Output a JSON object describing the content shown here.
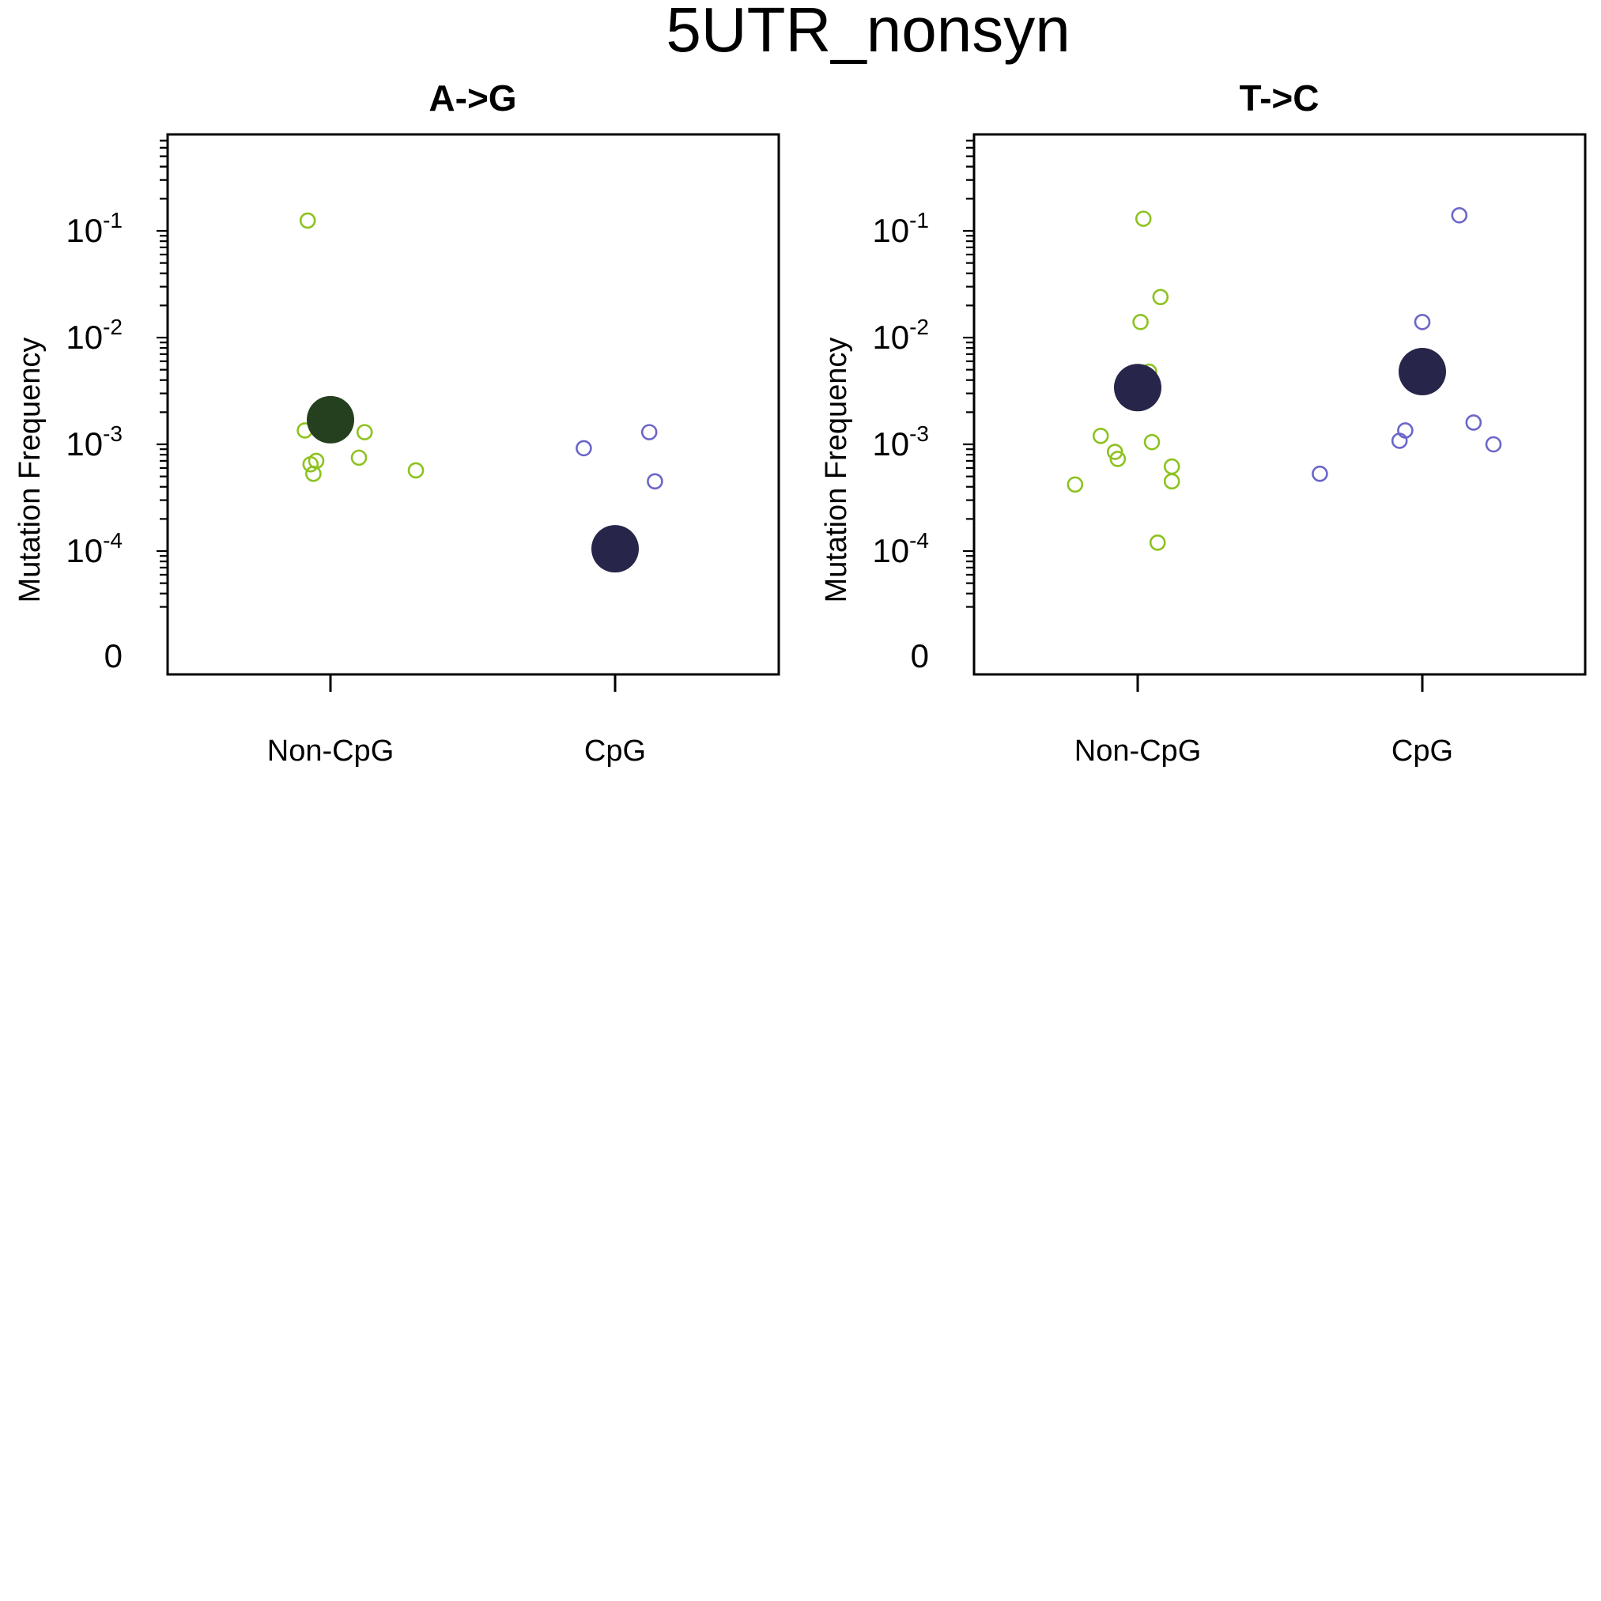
{
  "figure": {
    "title": "5UTR_nonsyn"
  },
  "colors": {
    "noncpg_points": "#8DC21F",
    "cpg_points": "#6B66C8",
    "noncpg_mean_agg": "#25401F",
    "mean_dark": "#27264A",
    "axis": "#000000"
  },
  "chart_data": [
    {
      "type": "scatter",
      "title": "A->G",
      "ylabel": "Mutation Frequency",
      "y_scale": "log10 with zero",
      "ylim": [
        0,
        0.8
      ],
      "y_ticks": [
        {
          "value": 0,
          "label": "0"
        },
        {
          "value": 0.0001,
          "label": "10^-4"
        },
        {
          "value": 0.001,
          "label": "10^-3"
        },
        {
          "value": 0.01,
          "label": "10^-2"
        },
        {
          "value": 0.1,
          "label": "10^-1"
        }
      ],
      "categories": [
        "Non-CpG",
        "CpG"
      ],
      "series": [
        {
          "category": "Non-CpG",
          "points": [
            {
              "x": 0.92,
              "y": 0.125
            },
            {
              "x": 0.91,
              "y": 0.00135
            },
            {
              "x": 0.93,
              "y": 0.00065
            },
            {
              "x": 0.95,
              "y": 0.0007
            },
            {
              "x": 0.94,
              "y": 0.00053
            },
            {
              "x": 1.12,
              "y": 0.0013
            },
            {
              "x": 1.1,
              "y": 0.00075
            },
            {
              "x": 1.3,
              "y": 0.00057
            }
          ],
          "mean": {
            "x": 1.0,
            "y": 0.0017
          }
        },
        {
          "category": "CpG",
          "points": [
            {
              "x": 1.89,
              "y": 0.00092
            },
            {
              "x": 2.12,
              "y": 0.0013
            },
            {
              "x": 2.14,
              "y": 0.00045
            }
          ],
          "mean": {
            "x": 2.0,
            "y": 0.000105
          }
        }
      ]
    },
    {
      "type": "scatter",
      "title": "T->C",
      "ylabel": "Mutation Frequency",
      "y_scale": "log10 with zero",
      "ylim": [
        0,
        0.8
      ],
      "y_ticks": [
        {
          "value": 0,
          "label": "0"
        },
        {
          "value": 0.0001,
          "label": "10^-4"
        },
        {
          "value": 0.001,
          "label": "10^-3"
        },
        {
          "value": 0.01,
          "label": "10^-2"
        },
        {
          "value": 0.1,
          "label": "10^-1"
        }
      ],
      "categories": [
        "Non-CpG",
        "CpG"
      ],
      "series": [
        {
          "category": "Non-CpG",
          "points": [
            {
              "x": 1.02,
              "y": 0.13
            },
            {
              "x": 1.08,
              "y": 0.024
            },
            {
              "x": 1.01,
              "y": 0.014
            },
            {
              "x": 1.04,
              "y": 0.0048
            },
            {
              "x": 0.87,
              "y": 0.0012
            },
            {
              "x": 1.05,
              "y": 0.00105
            },
            {
              "x": 0.92,
              "y": 0.00085
            },
            {
              "x": 0.93,
              "y": 0.00073
            },
            {
              "x": 1.12,
              "y": 0.00062
            },
            {
              "x": 1.12,
              "y": 0.00045
            },
            {
              "x": 0.78,
              "y": 0.00042
            },
            {
              "x": 1.07,
              "y": 0.00012
            }
          ],
          "mean": {
            "x": 1.0,
            "y": 0.0034
          }
        },
        {
          "category": "CpG",
          "points": [
            {
              "x": 2.13,
              "y": 0.14
            },
            {
              "x": 2.0,
              "y": 0.014
            },
            {
              "x": 1.64,
              "y": 0.00053
            },
            {
              "x": 1.92,
              "y": 0.00108
            },
            {
              "x": 1.94,
              "y": 0.00135
            },
            {
              "x": 2.18,
              "y": 0.0016
            },
            {
              "x": 2.25,
              "y": 0.001
            }
          ],
          "mean": {
            "x": 2.0,
            "y": 0.0048
          }
        }
      ]
    }
  ]
}
